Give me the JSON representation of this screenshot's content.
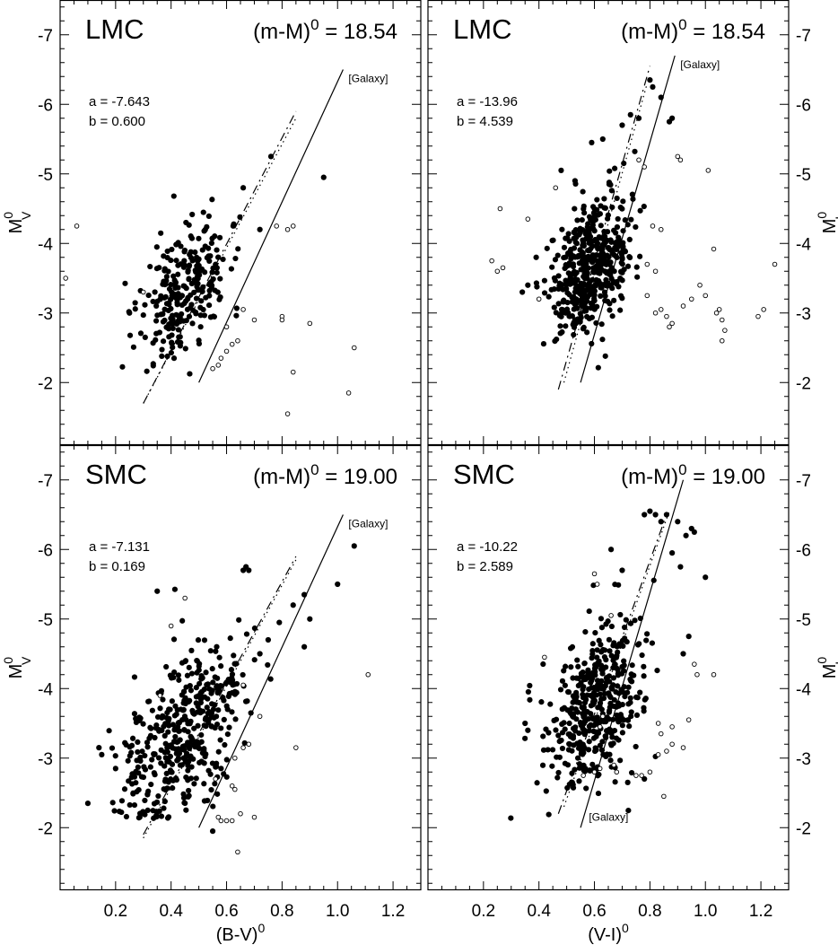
{
  "chart_data": [
    {
      "type": "scatter",
      "panel": "top-left",
      "galaxy": "LMC",
      "modulus_label": "(m-M)",
      "modulus_sup": "0",
      "modulus_value": "= 18.54",
      "a_text": "a = -7.643",
      "b_text": "b = 0.600",
      "galaxy_line_label": "[Galaxy]",
      "xlabel": "",
      "ylabel_main": "M",
      "ylabel_sub": "V",
      "ylabel_sup": "0",
      "xlim": [
        0.0,
        1.3
      ],
      "ylim": [
        -1.1,
        -7.5
      ],
      "x_ticks": [
        0.2,
        0.4,
        0.6,
        0.8,
        1.0,
        1.2
      ],
      "y_ticks": [
        -2,
        -3,
        -4,
        -5,
        -6,
        -7
      ],
      "show_x_tick_labels": false,
      "y_label_side": "left",
      "lines": [
        {
          "style": "solid",
          "points": [
            [
              0.5,
              -2.0
            ],
            [
              1.02,
              -6.5
            ]
          ]
        },
        {
          "style": "dashed",
          "points": [
            [
              0.3,
              -1.7
            ],
            [
              0.85,
              -5.9
            ]
          ]
        },
        {
          "style": "dotted",
          "points": [
            [
              0.3,
              -1.7
            ],
            [
              0.85,
              -5.8
            ]
          ]
        }
      ],
      "filled_points": [],
      "open_points": [
        [
          0.02,
          -3.5
        ],
        [
          0.06,
          -4.25
        ],
        [
          0.3,
          -3.3
        ],
        [
          0.78,
          -4.25
        ],
        [
          0.82,
          -4.2
        ],
        [
          0.84,
          -4.25
        ],
        [
          0.9,
          -2.85
        ],
        [
          0.8,
          -2.95
        ],
        [
          0.8,
          -2.9
        ],
        [
          1.06,
          -2.5
        ],
        [
          0.84,
          -2.15
        ],
        [
          0.82,
          -1.55
        ],
        [
          1.04,
          -1.85
        ],
        [
          0.55,
          -2.2
        ],
        [
          0.57,
          -2.25
        ],
        [
          0.58,
          -2.35
        ],
        [
          0.6,
          -2.45
        ],
        [
          0.62,
          -2.55
        ],
        [
          0.64,
          -2.6
        ],
        [
          0.7,
          -2.9
        ],
        [
          0.66,
          -3.05
        ],
        [
          0.6,
          -2.8
        ]
      ],
      "filled_seed": 11,
      "filled_n": 260,
      "filled_cx": 0.45,
      "filled_cy": -3.3,
      "filled_sx": 0.08,
      "filled_sy": 0.45,
      "extra_filled": [
        [
          0.95,
          -4.95
        ],
        [
          0.76,
          -5.25
        ],
        [
          0.66,
          -4.8
        ],
        [
          0.41,
          -4.68
        ],
        [
          0.25,
          -3.0
        ],
        [
          0.3,
          -2.97
        ],
        [
          0.72,
          -4.2
        ]
      ]
    },
    {
      "type": "scatter",
      "panel": "top-right",
      "galaxy": "LMC",
      "modulus_label": "(m-M)",
      "modulus_sup": "0",
      "modulus_value": "= 18.54",
      "a_text": "a = -13.96",
      "b_text": "b = 4.539",
      "galaxy_line_label": "[Galaxy]",
      "xlabel": "",
      "ylabel_main": "M",
      "ylabel_sub": "I",
      "ylabel_sup": "0",
      "xlim": [
        0.0,
        1.3
      ],
      "ylim": [
        -1.1,
        -7.5
      ],
      "x_ticks": [
        0.2,
        0.4,
        0.6,
        0.8,
        1.0,
        1.2
      ],
      "y_ticks": [
        -2,
        -3,
        -4,
        -5,
        -6,
        -7
      ],
      "show_x_tick_labels": false,
      "y_label_side": "right",
      "lines": [
        {
          "style": "solid",
          "points": [
            [
              0.55,
              -2.0
            ],
            [
              0.89,
              -6.7
            ]
          ]
        },
        {
          "style": "dashed",
          "points": [
            [
              0.47,
              -1.9
            ],
            [
              0.8,
              -6.55
            ]
          ]
        },
        {
          "style": "dotted",
          "points": [
            [
              0.49,
              -2.0
            ],
            [
              0.79,
              -6.3
            ]
          ]
        }
      ],
      "filled_points": [],
      "open_points": [
        [
          0.26,
          -4.5
        ],
        [
          0.23,
          -3.75
        ],
        [
          0.27,
          -3.65
        ],
        [
          0.25,
          -3.6
        ],
        [
          0.36,
          -4.35
        ],
        [
          0.46,
          -4.8
        ],
        [
          0.4,
          -3.2
        ],
        [
          0.76,
          -5.2
        ],
        [
          0.78,
          -5.1
        ],
        [
          0.9,
          -5.25
        ],
        [
          0.91,
          -5.2
        ],
        [
          1.01,
          -5.05
        ],
        [
          1.03,
          -3.92
        ],
        [
          0.98,
          -3.4
        ],
        [
          1.0,
          -3.25
        ],
        [
          1.04,
          -3.0
        ],
        [
          1.05,
          -3.05
        ],
        [
          1.06,
          -2.9
        ],
        [
          1.07,
          -2.75
        ],
        [
          1.06,
          -2.6
        ],
        [
          1.19,
          -2.95
        ],
        [
          1.21,
          -3.05
        ],
        [
          1.25,
          -3.7
        ],
        [
          0.84,
          -3.05
        ],
        [
          0.82,
          -3.0
        ],
        [
          0.79,
          -3.25
        ],
        [
          0.86,
          -2.95
        ],
        [
          0.88,
          -2.85
        ],
        [
          0.87,
          -2.8
        ],
        [
          0.92,
          -3.1
        ],
        [
          0.95,
          -3.2
        ],
        [
          0.81,
          -4.25
        ],
        [
          0.84,
          -4.2
        ],
        [
          0.79,
          -3.7
        ],
        [
          0.82,
          -3.6
        ]
      ],
      "filled_seed": 29,
      "filled_n": 480,
      "filled_cx": 0.58,
      "filled_cy": -3.65,
      "filled_sx": 0.07,
      "filled_sy": 0.45,
      "extra_filled": [
        [
          0.8,
          -6.35
        ],
        [
          0.81,
          -6.25
        ],
        [
          0.84,
          -6.1
        ],
        [
          0.87,
          -5.75
        ],
        [
          0.88,
          -5.8
        ],
        [
          0.63,
          -5.5
        ],
        [
          0.59,
          -5.45
        ],
        [
          0.7,
          -5.7
        ],
        [
          0.73,
          -5.85
        ],
        [
          0.76,
          -5.8
        ],
        [
          0.48,
          -5.05
        ],
        [
          0.53,
          -4.9
        ],
        [
          0.36,
          -3.4
        ],
        [
          0.34,
          -3.3
        ],
        [
          0.39,
          -3.8
        ]
      ]
    },
    {
      "type": "scatter",
      "panel": "bottom-left",
      "galaxy": "SMC",
      "modulus_label": "(m-M)",
      "modulus_sup": "0",
      "modulus_value": "= 19.00",
      "a_text": "a = -7.131",
      "b_text": "b = 0.169",
      "galaxy_line_label": "[Galaxy]",
      "xlabel_main": "(B-V)",
      "xlabel_sup": "0",
      "ylabel_main": "M",
      "ylabel_sub": "V",
      "ylabel_sup": "0",
      "xlim": [
        0.0,
        1.3
      ],
      "ylim": [
        -1.1,
        -7.5
      ],
      "x_ticks": [
        0.2,
        0.4,
        0.6,
        0.8,
        1.0,
        1.2
      ],
      "x_tick_labels": [
        "0.2",
        "0.4",
        "0.6",
        "0.8",
        "1.0",
        "1.2"
      ],
      "y_ticks": [
        -2,
        -3,
        -4,
        -5,
        -6,
        -7
      ],
      "show_x_tick_labels": true,
      "y_label_side": "left",
      "lines": [
        {
          "style": "solid",
          "points": [
            [
              0.5,
              -2.0
            ],
            [
              1.02,
              -6.5
            ]
          ]
        },
        {
          "style": "dashed",
          "points": [
            [
              0.3,
              -1.9
            ],
            [
              0.85,
              -5.9
            ]
          ]
        },
        {
          "style": "dotted",
          "points": [
            [
              0.3,
              -1.85
            ],
            [
              0.85,
              -5.85
            ]
          ]
        }
      ],
      "open_points": [
        [
          0.36,
          -3.9
        ],
        [
          0.4,
          -4.9
        ],
        [
          0.45,
          -5.3
        ],
        [
          0.56,
          -2.7
        ],
        [
          0.57,
          -2.15
        ],
        [
          0.58,
          -2.1
        ],
        [
          0.6,
          -2.1
        ],
        [
          0.62,
          -2.1
        ],
        [
          0.65,
          -2.2
        ],
        [
          0.62,
          -2.6
        ],
        [
          0.63,
          -2.55
        ],
        [
          0.7,
          -2.15
        ],
        [
          0.64,
          -1.65
        ],
        [
          0.63,
          -3.0
        ],
        [
          0.66,
          -3.15
        ],
        [
          0.85,
          -3.15
        ],
        [
          1.11,
          -4.2
        ],
        [
          0.66,
          -4.05
        ],
        [
          0.72,
          -3.6
        ],
        [
          0.68,
          -3.2
        ]
      ],
      "filled_seed": 57,
      "filled_n": 430,
      "filled_cx": 0.44,
      "filled_cy": -3.3,
      "filled_sx": 0.11,
      "filled_sy": 0.55,
      "extra_filled": [
        [
          1.06,
          -6.05
        ],
        [
          0.66,
          -5.7
        ],
        [
          0.67,
          -5.75
        ],
        [
          0.68,
          -5.7
        ],
        [
          0.35,
          -5.4
        ],
        [
          0.84,
          -5.2
        ],
        [
          0.88,
          -5.35
        ],
        [
          1.0,
          -5.5
        ],
        [
          0.9,
          -5.0
        ],
        [
          0.88,
          -4.6
        ],
        [
          0.1,
          -2.35
        ],
        [
          0.14,
          -3.15
        ],
        [
          0.15,
          -3.05
        ],
        [
          0.55,
          -1.95
        ],
        [
          0.2,
          -2.85
        ],
        [
          0.75,
          -4.7
        ],
        [
          0.79,
          -4.95
        ],
        [
          0.72,
          -4.5
        ]
      ]
    },
    {
      "type": "scatter",
      "panel": "bottom-right",
      "galaxy": "SMC",
      "modulus_label": "(m-M)",
      "modulus_sup": "0",
      "modulus_value": "= 19.00",
      "a_text": "a = -10.22",
      "b_text": "b = 2.589",
      "galaxy_line_label": "[Galaxy]",
      "xlabel_main": "(V-I)",
      "xlabel_sup": "0",
      "ylabel_main": "M",
      "ylabel_sub": "I",
      "ylabel_sup": "0",
      "xlim": [
        0.0,
        1.3
      ],
      "ylim": [
        -1.1,
        -7.5
      ],
      "x_ticks": [
        0.2,
        0.4,
        0.6,
        0.8,
        1.0,
        1.2
      ],
      "x_tick_labels": [
        "0.2",
        "0.4",
        "0.6",
        "0.8",
        "1.0",
        "1.2"
      ],
      "y_ticks": [
        -2,
        -3,
        -4,
        -5,
        -6,
        -7
      ],
      "show_x_tick_labels": true,
      "y_label_side": "right",
      "lines": [
        {
          "style": "solid",
          "points": [
            [
              0.55,
              -2.0
            ],
            [
              0.92,
              -7.0
            ]
          ]
        },
        {
          "style": "dashed",
          "points": [
            [
              0.47,
              -2.2
            ],
            [
              0.86,
              -6.5
            ]
          ]
        },
        {
          "style": "dotted",
          "points": [
            [
              0.49,
              -2.3
            ],
            [
              0.87,
              -6.55
            ]
          ]
        }
      ],
      "open_points": [
        [
          0.6,
          -5.65
        ],
        [
          0.61,
          -5.5
        ],
        [
          0.66,
          -5.05
        ],
        [
          0.63,
          -3.6
        ],
        [
          0.62,
          -3.45
        ],
        [
          0.6,
          -2.8
        ],
        [
          0.62,
          -2.85
        ],
        [
          0.67,
          -2.9
        ],
        [
          0.68,
          -2.8
        ],
        [
          0.75,
          -2.75
        ],
        [
          0.77,
          -2.75
        ],
        [
          0.8,
          -2.8
        ],
        [
          0.83,
          -3.05
        ],
        [
          0.86,
          -3.1
        ],
        [
          0.84,
          -3.35
        ],
        [
          0.88,
          -3.2
        ],
        [
          0.92,
          -3.15
        ],
        [
          0.96,
          -4.35
        ],
        [
          0.97,
          -4.2
        ],
        [
          1.03,
          -4.2
        ],
        [
          0.85,
          -2.45
        ],
        [
          0.88,
          -3.45
        ],
        [
          0.94,
          -3.55
        ],
        [
          0.83,
          -3.5
        ],
        [
          0.56,
          -2.75
        ],
        [
          0.42,
          -4.45
        ]
      ],
      "filled_seed": 83,
      "filled_n": 430,
      "filled_cx": 0.6,
      "filled_cy": -3.75,
      "filled_sx": 0.09,
      "filled_sy": 0.55,
      "extra_filled": [
        [
          0.78,
          -6.5
        ],
        [
          0.8,
          -6.55
        ],
        [
          0.82,
          -6.5
        ],
        [
          0.84,
          -6.4
        ],
        [
          0.86,
          -6.5
        ],
        [
          0.9,
          -6.4
        ],
        [
          0.93,
          -6.2
        ],
        [
          0.95,
          -6.3
        ],
        [
          0.96,
          -6.25
        ],
        [
          0.66,
          -6.0
        ],
        [
          0.7,
          -5.7
        ],
        [
          0.88,
          -5.95
        ],
        [
          0.91,
          -5.75
        ],
        [
          1.0,
          -5.6
        ],
        [
          0.94,
          -4.75
        ],
        [
          0.92,
          -4.5
        ],
        [
          0.35,
          -3.5
        ],
        [
          0.36,
          -3.4
        ],
        [
          0.72,
          -2.65
        ],
        [
          0.78,
          -2.7
        ]
      ]
    }
  ]
}
